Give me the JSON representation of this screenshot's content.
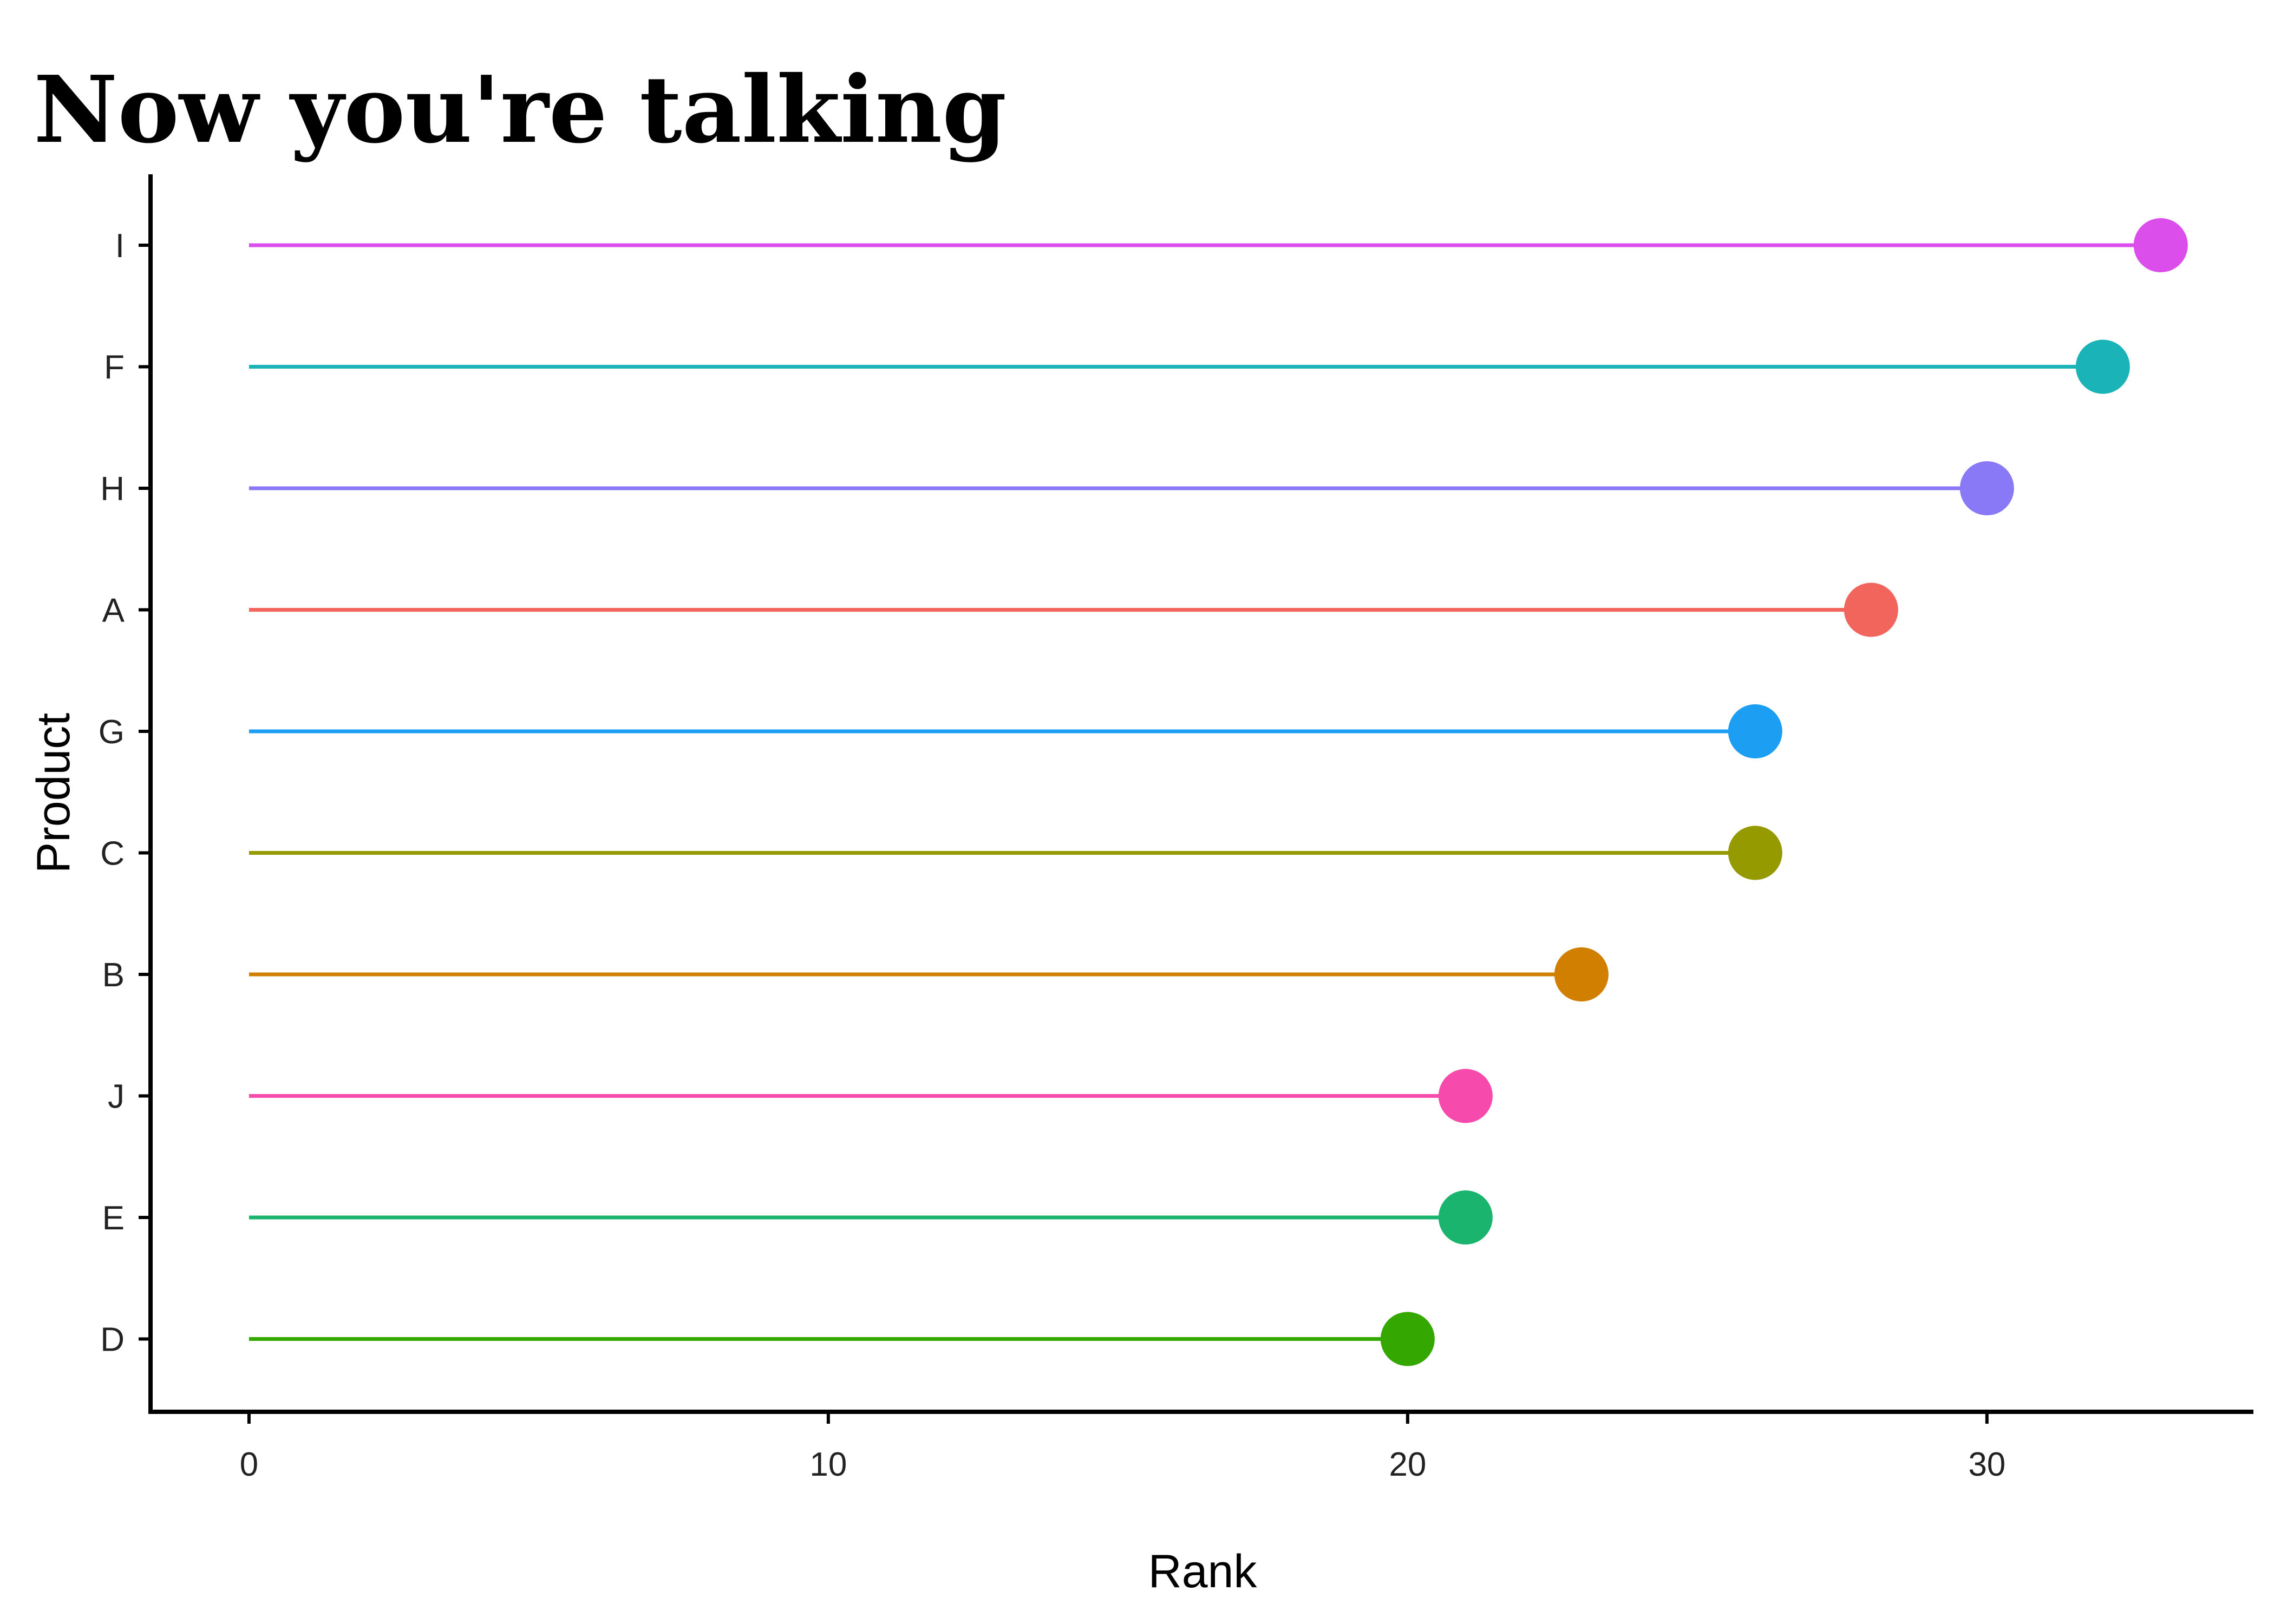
{
  "chart_data": {
    "type": "lollipop",
    "title": "Now you're talking",
    "xlabel": "Rank",
    "ylabel": "Product",
    "xlim": [
      -1.7,
      34.6
    ],
    "x_ticks": [
      0,
      10,
      20,
      30
    ],
    "grid": false,
    "legend": "none",
    "categories": [
      "I",
      "F",
      "H",
      "A",
      "G",
      "C",
      "B",
      "J",
      "E",
      "D"
    ],
    "values": [
      33,
      32,
      30,
      28,
      26,
      26,
      23,
      21,
      21,
      20
    ],
    "colors": [
      "#DB4EEB",
      "#1AB4B8",
      "#8A79F7",
      "#F2655C",
      "#1C9EF2",
      "#949A00",
      "#D17F00",
      "#F64AAD",
      "#1AB46E",
      "#35A800"
    ]
  }
}
